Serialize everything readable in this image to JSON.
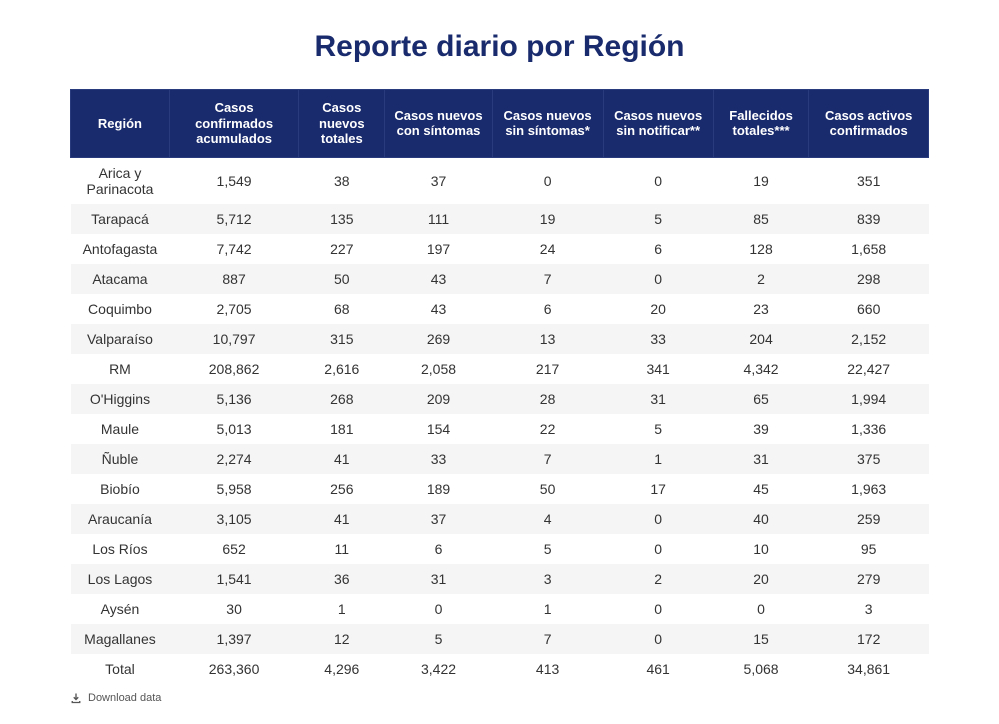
{
  "title": "Reporte diario por Región",
  "table": {
    "type": "table",
    "header_bg": "#1a2b6d",
    "header_fg": "#ffffff",
    "row_alt_bg": "#f5f5f5",
    "columns": [
      "Región",
      "Casos confirmados acumulados",
      "Casos nuevos totales",
      "Casos nuevos con síntomas",
      "Casos nuevos sin síntomas*",
      "Casos nuevos sin notificar**",
      "Fallecidos totales***",
      "Casos activos confirmados"
    ],
    "rows": [
      [
        "Arica y Parinacota",
        "1,549",
        "38",
        "37",
        "0",
        "0",
        "19",
        "351"
      ],
      [
        "Tarapacá",
        "5,712",
        "135",
        "111",
        "19",
        "5",
        "85",
        "839"
      ],
      [
        "Antofagasta",
        "7,742",
        "227",
        "197",
        "24",
        "6",
        "128",
        "1,658"
      ],
      [
        "Atacama",
        "887",
        "50",
        "43",
        "7",
        "0",
        "2",
        "298"
      ],
      [
        "Coquimbo",
        "2,705",
        "68",
        "43",
        "6",
        "20",
        "23",
        "660"
      ],
      [
        "Valparaíso",
        "10,797",
        "315",
        "269",
        "13",
        "33",
        "204",
        "2,152"
      ],
      [
        "RM",
        "208,862",
        "2,616",
        "2,058",
        "217",
        "341",
        "4,342",
        "22,427"
      ],
      [
        "O'Higgins",
        "5,136",
        "268",
        "209",
        "28",
        "31",
        "65",
        "1,994"
      ],
      [
        "Maule",
        "5,013",
        "181",
        "154",
        "22",
        "5",
        "39",
        "1,336"
      ],
      [
        "Ñuble",
        "2,274",
        "41",
        "33",
        "7",
        "1",
        "31",
        "375"
      ],
      [
        "Biobío",
        "5,958",
        "256",
        "189",
        "50",
        "17",
        "45",
        "1,963"
      ],
      [
        "Araucanía",
        "3,105",
        "41",
        "37",
        "4",
        "0",
        "40",
        "259"
      ],
      [
        "Los Ríos",
        "652",
        "11",
        "6",
        "5",
        "0",
        "10",
        "95"
      ],
      [
        "Los Lagos",
        "1,541",
        "36",
        "31",
        "3",
        "2",
        "20",
        "279"
      ],
      [
        "Aysén",
        "30",
        "1",
        "0",
        "1",
        "0",
        "0",
        "3"
      ],
      [
        "Magallanes",
        "1,397",
        "12",
        "5",
        "7",
        "0",
        "15",
        "172"
      ],
      [
        "Total",
        "263,360",
        "4,296",
        "3,422",
        "413",
        "461",
        "5,068",
        "34,861"
      ]
    ]
  },
  "download_label": "Download data"
}
